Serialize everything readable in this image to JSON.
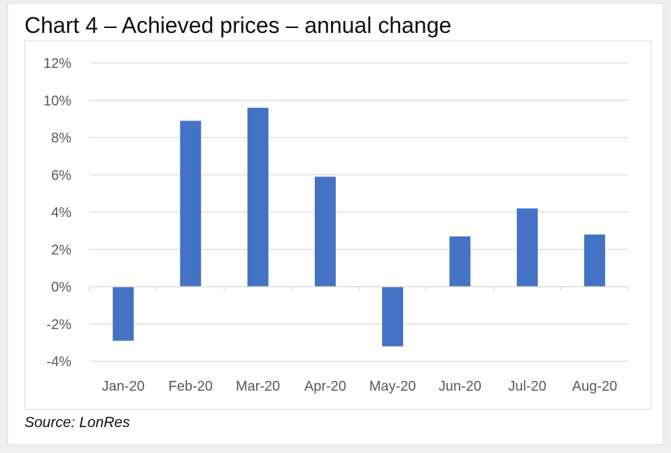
{
  "header": {
    "title": "Chart 4 – Achieved prices – annual change"
  },
  "footer": {
    "source": "Source: LonRes"
  },
  "colors": {
    "bar": "#4472c4",
    "grid": "#d9d9d9",
    "tick_text": "#595959"
  },
  "chart_data": {
    "type": "bar",
    "categories": [
      "Jan-20",
      "Feb-20",
      "Mar-20",
      "Apr-20",
      "May-20",
      "Jun-20",
      "Jul-20",
      "Aug-20"
    ],
    "values": [
      -2.9,
      8.9,
      9.6,
      5.9,
      -3.2,
      2.7,
      4.2,
      2.8
    ],
    "unit": "%",
    "ylim": [
      -4,
      12
    ],
    "yticks": [
      -4,
      -2,
      0,
      2,
      4,
      6,
      8,
      10,
      12
    ],
    "ytick_labels": [
      "-4%",
      "-2%",
      "0%",
      "2%",
      "4%",
      "6%",
      "8%",
      "10%",
      "12%"
    ],
    "grid": true,
    "legend": "none"
  }
}
